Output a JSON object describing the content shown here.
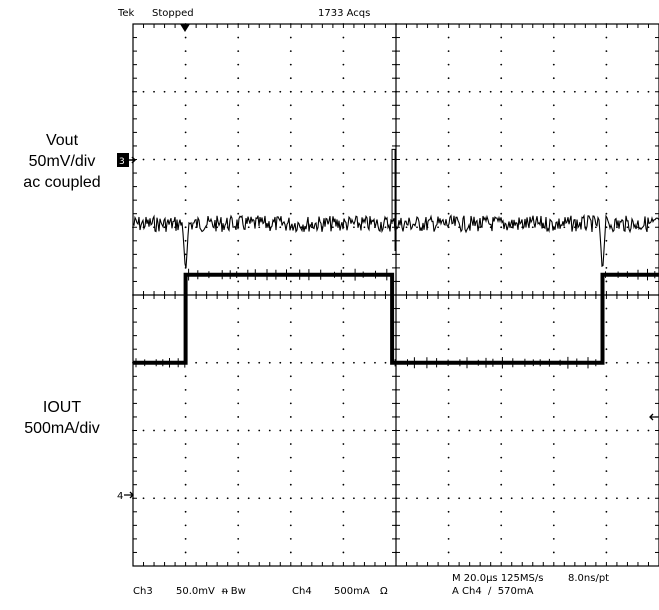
{
  "header": {
    "brand": "Tek",
    "status": "Stopped",
    "acquisitions": "1733 Acqs"
  },
  "labels": {
    "vout_lines": [
      "Vout",
      "50mV/div",
      "ac coupled"
    ],
    "iout_lines": [
      "IOUT",
      "500mA/div"
    ]
  },
  "markers": {
    "ch3": "3",
    "ch4": "4"
  },
  "footer": {
    "ch3_label": "Ch3",
    "ch3_scale": "50.0mV",
    "ch3_flags": "ᵰ Bw",
    "ch4_label": "Ch4",
    "ch4_scale": "500mA",
    "ch4_flags": "Ω",
    "timebase": "M 20.0µs 125MS/s",
    "resolution": "8.0ns/pt",
    "trigger": "A Ch4  ∕  570mA"
  },
  "chart_data": {
    "type": "line",
    "title": "",
    "grid": true,
    "divisions_x": 10,
    "divisions_y": 8,
    "x_unit": "µs",
    "x_per_div": 20,
    "xlim": [
      0,
      200
    ],
    "series": [
      {
        "channel": "Ch3",
        "per_div": "50mV",
        "baseline_div": 5.05,
        "noise_div": 0.12,
        "spikes": [
          {
            "x": 20.0,
            "depth_div": 0.75
          },
          {
            "x": 178.5,
            "depth_div": 0.72
          }
        ],
        "glitch": {
          "x": 98.5,
          "up_div": 1.1,
          "down_div": -0.4
        }
      },
      {
        "channel": "Ch4",
        "per_div": "500mA",
        "ground_div": 1.7,
        "x": [
          0,
          20.0,
          20.0,
          98.5,
          98.5,
          178.5,
          178.5,
          200
        ],
        "y_div": [
          3.0,
          3.0,
          4.3,
          4.3,
          3.0,
          3.0,
          4.3,
          4.3
        ]
      }
    ],
    "trigger_level": "570mA"
  }
}
